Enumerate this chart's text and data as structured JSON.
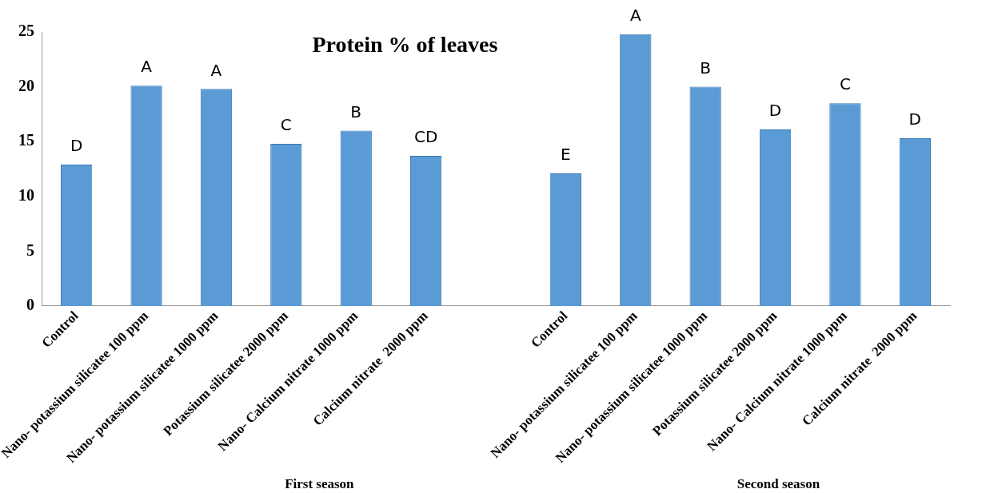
{
  "chart_data": {
    "type": "bar",
    "title": "Protein % of leaves",
    "categories": [
      "Control",
      "Nano- potassium silicatee 100 ppm",
      "Nano- potassium silicatee 1000 ppm",
      "Potassium silicatee 2000 ppm",
      "Nano- Calcium nitrate 1000 ppm",
      "Calcium nitrate  2000 ppm",
      null,
      "Control",
      "Nano- potassium silicatee 100 ppm",
      "Nano- potassium silicatee 1000 ppm",
      "Potassium silicatee 2000 ppm",
      "Nano- Calcium nitrate 1000 ppm",
      "Calcium nitrate  2000 ppm"
    ],
    "values": [
      12.9,
      20.1,
      19.8,
      14.8,
      16.0,
      13.7,
      null,
      12.1,
      24.8,
      20.0,
      16.1,
      18.5,
      15.3
    ],
    "value_labels": [
      "D",
      "A",
      "A",
      "C",
      "B",
      "CD",
      null,
      "E",
      "A",
      "B",
      "D",
      "C",
      "D"
    ],
    "color": "#5b9bd5",
    "ylim": [
      0,
      25
    ],
    "yticks": [
      0,
      5,
      10,
      15,
      20,
      25
    ],
    "grid": false,
    "legend": false,
    "annotations": [
      "First season",
      "Second season"
    ]
  }
}
